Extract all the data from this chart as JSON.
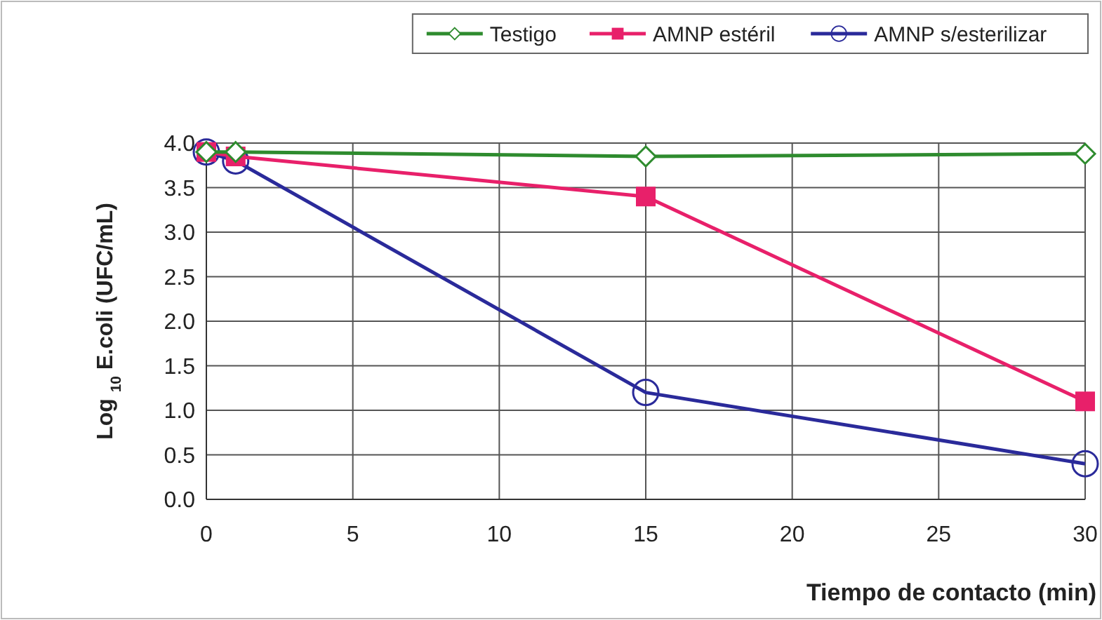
{
  "chart_data": {
    "type": "line",
    "xlabel": "Tiempo de contacto (min)",
    "ylabel": "Log $_{10}$ E.coli (UFC/mL)",
    "xlim": [
      0,
      30
    ],
    "xticks": [
      0,
      5,
      10,
      15,
      20,
      25,
      30
    ],
    "ylim": [
      0,
      4
    ],
    "yticks": [
      {
        "value": 0,
        "label": "0.0"
      },
      {
        "value": 0.5,
        "label": "0.5"
      },
      {
        "value": 1,
        "label": "1.0"
      },
      {
        "value": 1.5,
        "label": "1.5"
      },
      {
        "value": 2,
        "label": "2.0"
      },
      {
        "value": 2.5,
        "label": "2.5"
      },
      {
        "value": 3,
        "label": "3.0"
      },
      {
        "value": 3.5,
        "label": "3.5"
      },
      {
        "value": 4,
        "label": "4.0"
      }
    ],
    "grid": true,
    "legend": "top right",
    "x": [
      0,
      1,
      15,
      30
    ],
    "series": [
      {
        "name": "Testigo",
        "color": "#2e8b2e",
        "marker": "diamond",
        "values": [
          3.9,
          3.9,
          3.85,
          3.88
        ]
      },
      {
        "name": "AMNP estéril",
        "color": "#e8206a",
        "marker": "square",
        "values": [
          3.9,
          3.85,
          3.4,
          1.1
        ]
      },
      {
        "name": "AMNP s/esterilizar",
        "color": "#2a2a9a",
        "marker": "circle",
        "values": [
          3.9,
          3.8,
          1.2,
          0.4
        ]
      }
    ]
  }
}
